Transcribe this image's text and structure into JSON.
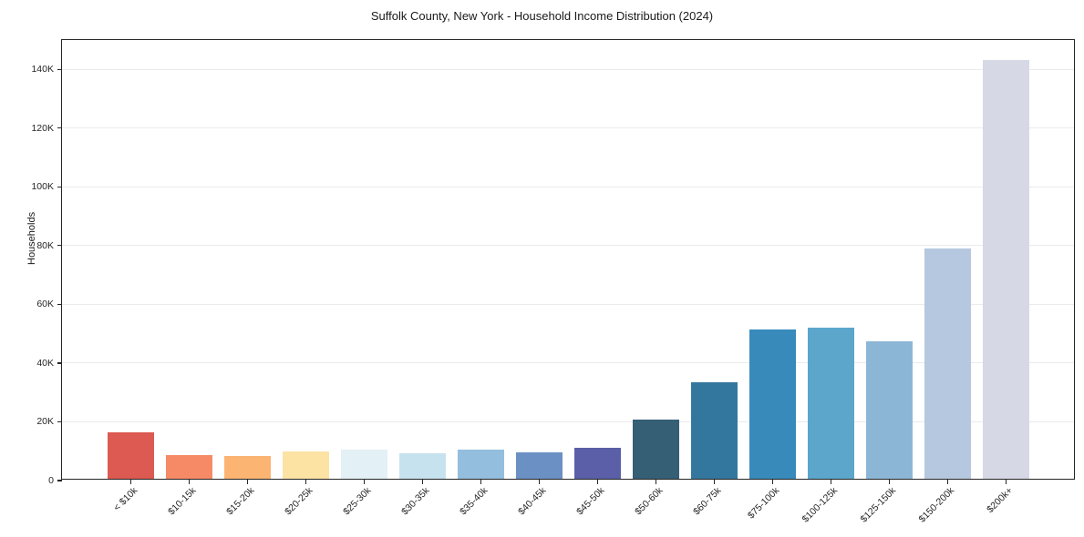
{
  "chart_data": {
    "type": "bar",
    "title": "Suffolk County, New York - Household Income Distribution (2024)",
    "xlabel": "",
    "ylabel": "Households",
    "categories": [
      "< $10k",
      "$10-15k",
      "$15-20k",
      "$20-25k",
      "$25-30k",
      "$30-35k",
      "$35-40k",
      "$40-45k",
      "$45-50k",
      "$50-60k",
      "$60-75k",
      "$75-100k",
      "$100-125k",
      "$125-150k",
      "$150-200k",
      "$200k+"
    ],
    "values": [
      15800,
      8100,
      7600,
      9300,
      9900,
      8700,
      9900,
      9000,
      10500,
      20100,
      32800,
      50800,
      51400,
      46800,
      78400,
      142500
    ],
    "bar_colors": [
      "#dc5a51",
      "#f68a67",
      "#fbb471",
      "#fce3a4",
      "#e3f0f6",
      "#c6e2ef",
      "#93bedd",
      "#6b90c4",
      "#5b5fa7",
      "#355f75",
      "#34779e",
      "#388abb",
      "#5ca6cb",
      "#8cb6d6",
      "#b6c8df",
      "#d6d8e5"
    ],
    "ylim": [
      0,
      150000
    ],
    "yticks": [
      {
        "label": "0",
        "value": 0
      },
      {
        "label": "20K",
        "value": 20000
      },
      {
        "label": "40K",
        "value": 40000
      },
      {
        "label": "60K",
        "value": 60000
      },
      {
        "label": "80K",
        "value": 80000
      },
      {
        "label": "100K",
        "value": 100000
      },
      {
        "label": "120K",
        "value": 120000
      },
      {
        "label": "140K",
        "value": 140000
      }
    ],
    "grid": "horizontal",
    "legend": "none",
    "colors": {
      "spine": "#262626",
      "gridline": "#ebebeb",
      "text": "#262626",
      "background": "#ffffff"
    }
  }
}
